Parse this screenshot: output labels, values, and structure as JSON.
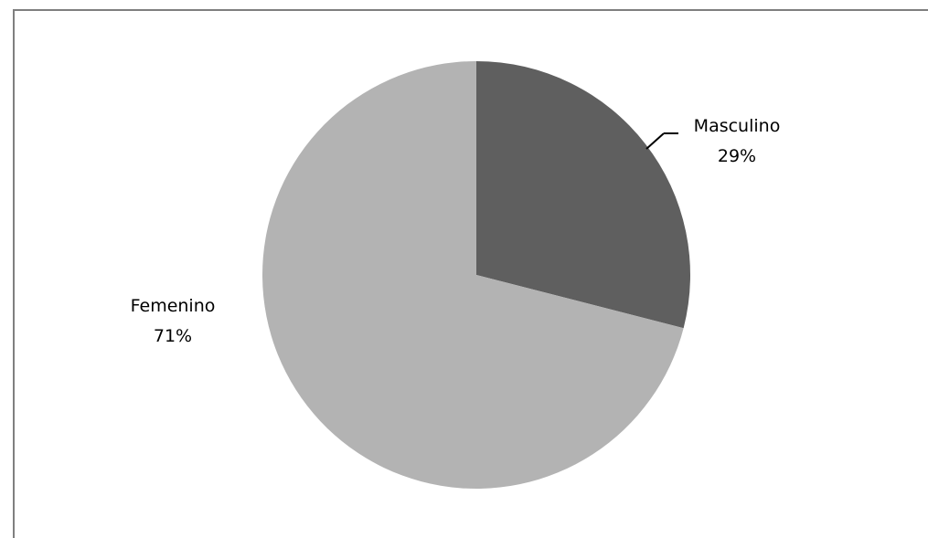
{
  "chart_data": {
    "type": "pie",
    "slices": [
      {
        "label": "Masculino",
        "value": 29,
        "percent_label": "29%",
        "color": "#5f5f5f"
      },
      {
        "label": "Femenino",
        "value": 71,
        "percent_label": "71%",
        "color": "#b3b3b3"
      }
    ],
    "start_angle_deg": 0,
    "direction": "clockwise",
    "legend": "none",
    "data_labels": "outside"
  }
}
